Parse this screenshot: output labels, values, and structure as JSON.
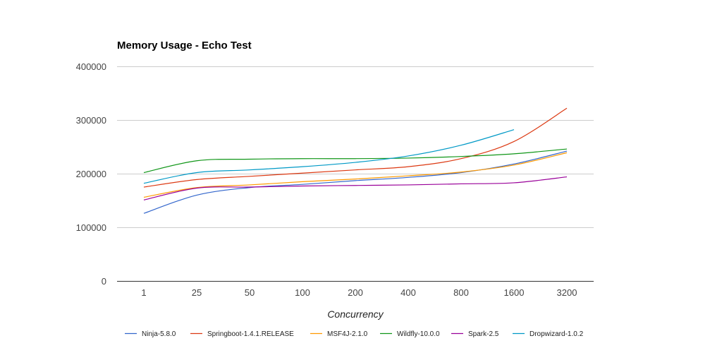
{
  "chart_data": {
    "type": "line",
    "title": "Memory Usage - Echo Test",
    "xlabel": "Concurrency",
    "ylabel": "",
    "categories": [
      "1",
      "25",
      "50",
      "100",
      "200",
      "400",
      "800",
      "1600",
      "3200"
    ],
    "ylim": [
      0,
      400000
    ],
    "yticks": [
      "0",
      "100000",
      "200000",
      "300000",
      "400000"
    ],
    "grid": true,
    "legend_position": "bottom",
    "series": [
      {
        "name": "Ninja-5.8.0",
        "color": "#3366cc",
        "values": [
          126000,
          160000,
          174000,
          180000,
          187000,
          193000,
          202000,
          218000,
          242000
        ]
      },
      {
        "name": "Springboot-1.4.1.RELEASE",
        "color": "#dc3912",
        "values": [
          175000,
          189000,
          195000,
          201000,
          207000,
          213000,
          228000,
          260000,
          322000
        ]
      },
      {
        "name": "MSF4J-2.1.0",
        "color": "#ff9900",
        "values": [
          156000,
          174000,
          179000,
          185000,
          190000,
          196000,
          203000,
          216000,
          239000
        ]
      },
      {
        "name": "Wildfly-10.0.0",
        "color": "#109618",
        "values": [
          202000,
          224000,
          227000,
          228000,
          228000,
          229000,
          232000,
          237000,
          246000
        ]
      },
      {
        "name": "Spark-2.5",
        "color": "#990099",
        "values": [
          151000,
          173000,
          175000,
          177000,
          178000,
          179000,
          181000,
          183000,
          194000
        ]
      },
      {
        "name": "Dropwizard-1.0.2",
        "color": "#0099c6",
        "values": [
          182000,
          202000,
          207000,
          213000,
          221000,
          233000,
          253000,
          282000,
          null
        ]
      }
    ]
  }
}
